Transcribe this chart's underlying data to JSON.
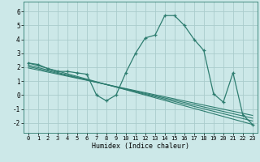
{
  "background_color": "#cce8e8",
  "grid_color": "#aacccc",
  "line_color": "#2e7d70",
  "xlabel": "Humidex (Indice chaleur)",
  "xlim": [
    -0.5,
    23.5
  ],
  "ylim": [
    -2.7,
    6.7
  ],
  "yticks": [
    -2,
    -1,
    0,
    1,
    2,
    3,
    4,
    5,
    6
  ],
  "xticks": [
    0,
    1,
    2,
    3,
    4,
    5,
    6,
    7,
    8,
    9,
    10,
    11,
    12,
    13,
    14,
    15,
    16,
    17,
    18,
    19,
    20,
    21,
    22,
    23
  ],
  "curve1_x": [
    0,
    1,
    2,
    3,
    4,
    5,
    6,
    7,
    8,
    9,
    10,
    11,
    12,
    13,
    14,
    15,
    16,
    17,
    18,
    19,
    20,
    21,
    22,
    23
  ],
  "curve1_y": [
    2.3,
    2.2,
    1.9,
    1.7,
    1.7,
    1.6,
    1.5,
    0.0,
    -0.4,
    0.0,
    1.6,
    3.0,
    4.1,
    4.3,
    5.7,
    5.7,
    5.0,
    4.0,
    3.2,
    0.1,
    -0.5,
    1.6,
    -1.4,
    -2.1
  ],
  "line2_x": [
    0,
    23
  ],
  "line2_y": [
    2.3,
    -2.1
  ],
  "line3_x": [
    0,
    23
  ],
  "line3_y": [
    2.15,
    -1.85
  ],
  "line4_x": [
    0,
    23
  ],
  "line4_y": [
    2.05,
    -1.65
  ],
  "line5_x": [
    0,
    23
  ],
  "line5_y": [
    1.95,
    -1.45
  ]
}
